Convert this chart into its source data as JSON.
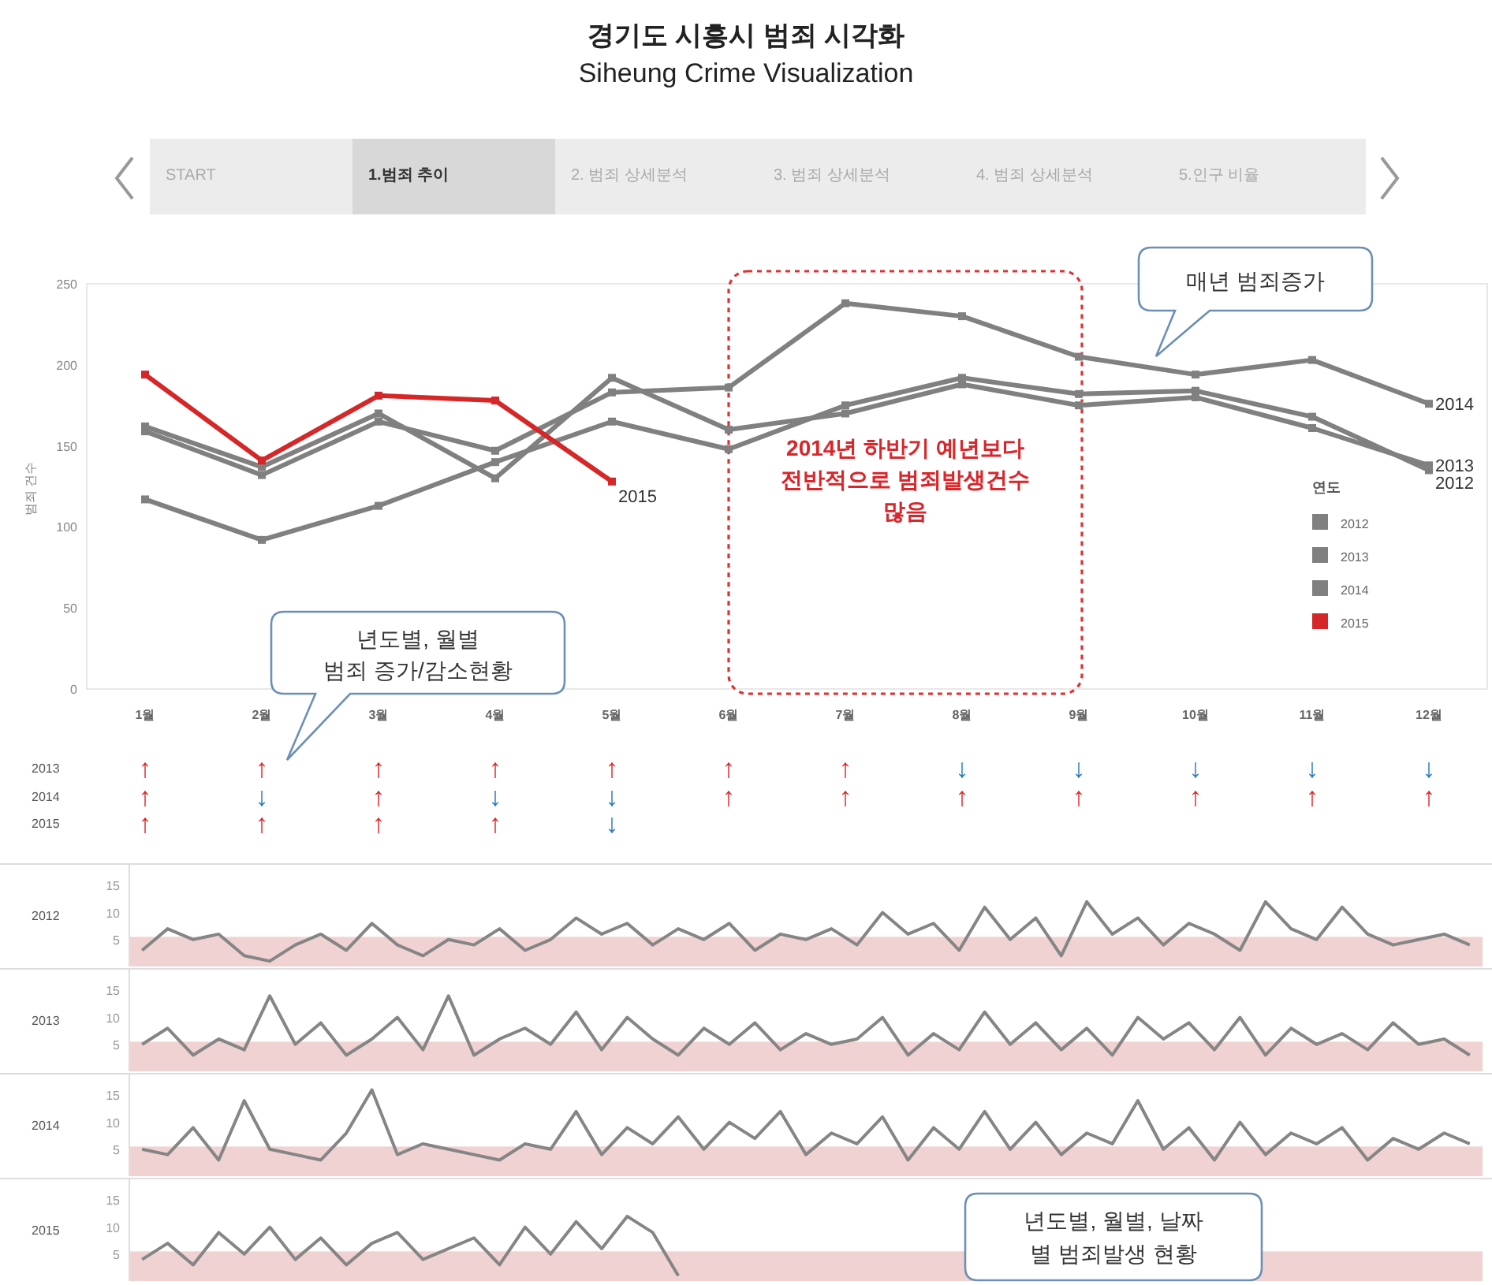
{
  "chart_data": [
    {
      "type": "line",
      "title": "경기도 시흥시 범죄 시각화",
      "subtitle": "Siheung Crime Visualization",
      "ylabel": "범죄 건수",
      "legend_title": "연도",
      "legend": "right",
      "marker": "square",
      "line_style": "solid",
      "annotations": [
        "START",
        "1.범죄 추이",
        "2. 범죄 상세분석",
        "3. 범죄 상세분석",
        "4. 범죄 상세분석",
        "5.인구 비율",
        "2014년 하반기 예년보다 전반적으로 범죄발생건수 많음",
        "매년 범죄증가"
      ],
      "categories": [
        "1월",
        "2월",
        "3월",
        "4월",
        "5월",
        "6월",
        "7월",
        "8월",
        "9월",
        "10월",
        "11월",
        "12월"
      ],
      "ylim": [
        0,
        250
      ],
      "yticks": [
        0,
        50,
        100,
        150,
        200,
        250
      ],
      "series": [
        {
          "name": "2012",
          "color": "#808080",
          "values": [
            117,
            92,
            113,
            140,
            165,
            148,
            175,
            192,
            182,
            184,
            168,
            135
          ]
        },
        {
          "name": "2013",
          "color": "#808080",
          "values": [
            162,
            137,
            170,
            130,
            192,
            160,
            170,
            188,
            175,
            180,
            161,
            138
          ]
        },
        {
          "name": "2014",
          "color": "#808080",
          "values": [
            159,
            132,
            165,
            147,
            183,
            186,
            238,
            230,
            205,
            194,
            203,
            176
          ]
        },
        {
          "name": "2015",
          "color": "#d62728",
          "values": [
            194,
            141,
            181,
            178,
            128,
            null,
            null,
            null,
            null,
            null,
            null,
            null
          ]
        }
      ]
    },
    {
      "type": "other",
      "annotations": [
        "년도별, 월별 범죄 증가/감소현황"
      ],
      "categories": [
        null,
        null,
        null,
        null,
        null,
        null,
        null,
        null,
        null,
        null,
        null,
        null
      ],
      "y_categories": [
        "2013",
        "2014",
        "2015"
      ],
      "cell_labels": [
        [
          "↑",
          "↑",
          "↑",
          "↑",
          "↑",
          "↑",
          "↑",
          "↓",
          "↓",
          "↓",
          "↓",
          "↓"
        ],
        [
          "↑",
          "↓",
          "↑",
          "↓",
          "↓",
          "↑",
          "↑",
          "↑",
          "↑",
          "↑",
          "↑",
          "↑"
        ],
        [
          "↑",
          "↑",
          "↑",
          "↑",
          "↓",
          null,
          null,
          null,
          null,
          null,
          null,
          null
        ]
      ],
      "colors": [
        [
          "#e0282b",
          "#e0282b",
          "#e0282b",
          "#e0282b",
          "#e0282b",
          "#e0282b",
          "#e0282b",
          "#2a7bc0",
          "#2a7bc0",
          "#2a7bc0",
          "#2a7bc0",
          "#2a7bc0"
        ],
        [
          "#e0282b",
          "#2a7bc0",
          "#e0282b",
          "#2a7bc0",
          "#2a7bc0",
          "#e0282b",
          "#e0282b",
          "#e0282b",
          "#e0282b",
          "#e0282b",
          "#e0282b",
          "#e0282b"
        ],
        [
          "#e0282b",
          "#e0282b",
          "#e0282b",
          "#e0282b",
          "#2a7bc0",
          null,
          null,
          null,
          null,
          null,
          null,
          null
        ]
      ]
    },
    {
      "type": "line",
      "ylabel": "2012",
      "tick_labels": "y",
      "ylim": [
        0,
        19
      ],
      "yticks": [
        5,
        10,
        15
      ],
      "categories": [
        null,
        null,
        null,
        null,
        null,
        null,
        null,
        null,
        null,
        null,
        null,
        null,
        null,
        null,
        null,
        null,
        null,
        null,
        null,
        null,
        null,
        null,
        null,
        null,
        null,
        null,
        null,
        null,
        null,
        null,
        null,
        null,
        null,
        null,
        null,
        null,
        null,
        null,
        null,
        null,
        null,
        null,
        null,
        null,
        null,
        null,
        null,
        null,
        null,
        null,
        null,
        null,
        null
      ],
      "bands": [
        {
          "axis": "y",
          "from": 0,
          "to": 5.5,
          "color": "#f0d2d2"
        }
      ],
      "series": [
        {
          "color": "#858585",
          "values": [
            3,
            7,
            5,
            6,
            2,
            1,
            4,
            6,
            3,
            8,
            4,
            2,
            5,
            4,
            7,
            3,
            5,
            9,
            6,
            8,
            4,
            7,
            5,
            8,
            3,
            6,
            5,
            7,
            4,
            10,
            6,
            8,
            3,
            11,
            5,
            9,
            2,
            12,
            6,
            9,
            4,
            8,
            6,
            3,
            12,
            7,
            5,
            11,
            6,
            4,
            5,
            6,
            4
          ]
        }
      ]
    },
    {
      "type": "line",
      "ylabel": "2013",
      "tick_labels": "y",
      "ylim": [
        0,
        19
      ],
      "yticks": [
        5,
        10,
        15
      ],
      "categories": [
        null,
        null,
        null,
        null,
        null,
        null,
        null,
        null,
        null,
        null,
        null,
        null,
        null,
        null,
        null,
        null,
        null,
        null,
        null,
        null,
        null,
        null,
        null,
        null,
        null,
        null,
        null,
        null,
        null,
        null,
        null,
        null,
        null,
        null,
        null,
        null,
        null,
        null,
        null,
        null,
        null,
        null,
        null,
        null,
        null,
        null,
        null,
        null,
        null,
        null,
        null,
        null,
        null
      ],
      "bands": [
        {
          "axis": "y",
          "from": 0,
          "to": 5.5,
          "color": "#f0d2d2"
        }
      ],
      "series": [
        {
          "color": "#858585",
          "values": [
            5,
            8,
            3,
            6,
            4,
            14,
            5,
            9,
            3,
            6,
            10,
            4,
            14,
            3,
            6,
            8,
            5,
            11,
            4,
            10,
            6,
            3,
            8,
            5,
            9,
            4,
            7,
            5,
            6,
            10,
            3,
            7,
            4,
            11,
            5,
            9,
            4,
            8,
            3,
            10,
            6,
            9,
            4,
            10,
            3,
            8,
            5,
            7,
            4,
            9,
            5,
            6,
            3
          ]
        }
      ]
    },
    {
      "type": "line",
      "ylabel": "2014",
      "tick_labels": "y",
      "ylim": [
        0,
        19
      ],
      "yticks": [
        5,
        10,
        15
      ],
      "categories": [
        null,
        null,
        null,
        null,
        null,
        null,
        null,
        null,
        null,
        null,
        null,
        null,
        null,
        null,
        null,
        null,
        null,
        null,
        null,
        null,
        null,
        null,
        null,
        null,
        null,
        null,
        null,
        null,
        null,
        null,
        null,
        null,
        null,
        null,
        null,
        null,
        null,
        null,
        null,
        null,
        null,
        null,
        null,
        null,
        null,
        null,
        null,
        null,
        null,
        null,
        null,
        null,
        null
      ],
      "bands": [
        {
          "axis": "y",
          "from": 0,
          "to": 5.5,
          "color": "#f0d2d2"
        }
      ],
      "series": [
        {
          "color": "#858585",
          "values": [
            5,
            4,
            9,
            3,
            14,
            5,
            4,
            3,
            8,
            16,
            4,
            6,
            5,
            4,
            3,
            6,
            5,
            12,
            4,
            9,
            6,
            11,
            5,
            10,
            7,
            12,
            4,
            8,
            6,
            11,
            3,
            9,
            5,
            12,
            5,
            10,
            4,
            8,
            6,
            14,
            5,
            9,
            3,
            10,
            4,
            8,
            6,
            9,
            3,
            7,
            5,
            8,
            6
          ]
        }
      ]
    },
    {
      "type": "line",
      "ylabel": "2015",
      "tick_labels": "y",
      "ylim": [
        0,
        19
      ],
      "yticks": [
        5,
        10,
        15
      ],
      "categories": [
        null,
        null,
        null,
        null,
        null,
        null,
        null,
        null,
        null,
        null,
        null,
        null,
        null,
        null,
        null,
        null,
        null,
        null,
        null,
        null,
        null,
        null,
        null,
        null,
        null,
        null,
        null,
        null,
        null,
        null,
        null,
        null,
        null,
        null,
        null,
        null,
        null,
        null,
        null,
        null,
        null,
        null,
        null,
        null,
        null,
        null,
        null,
        null,
        null,
        null,
        null,
        null,
        null
      ],
      "bands": [
        {
          "axis": "y",
          "from": 0,
          "to": 5.5,
          "color": "#f0d2d2"
        }
      ],
      "annotations": [
        "년도별, 월별, 날짜 별 범죄발생 현황"
      ],
      "series": [
        {
          "color": "#858585",
          "values": [
            4,
            7,
            3,
            9,
            5,
            10,
            4,
            8,
            3,
            7,
            9,
            4,
            6,
            8,
            3,
            10,
            5,
            11,
            6,
            12,
            9,
            1,
            null,
            null,
            null,
            null,
            null,
            null,
            null,
            null,
            null,
            null,
            null,
            null,
            null,
            null,
            null,
            null,
            null,
            null,
            null,
            null,
            null,
            null,
            null,
            null,
            null,
            null,
            null,
            null,
            null,
            null,
            null
          ]
        }
      ]
    }
  ]
}
